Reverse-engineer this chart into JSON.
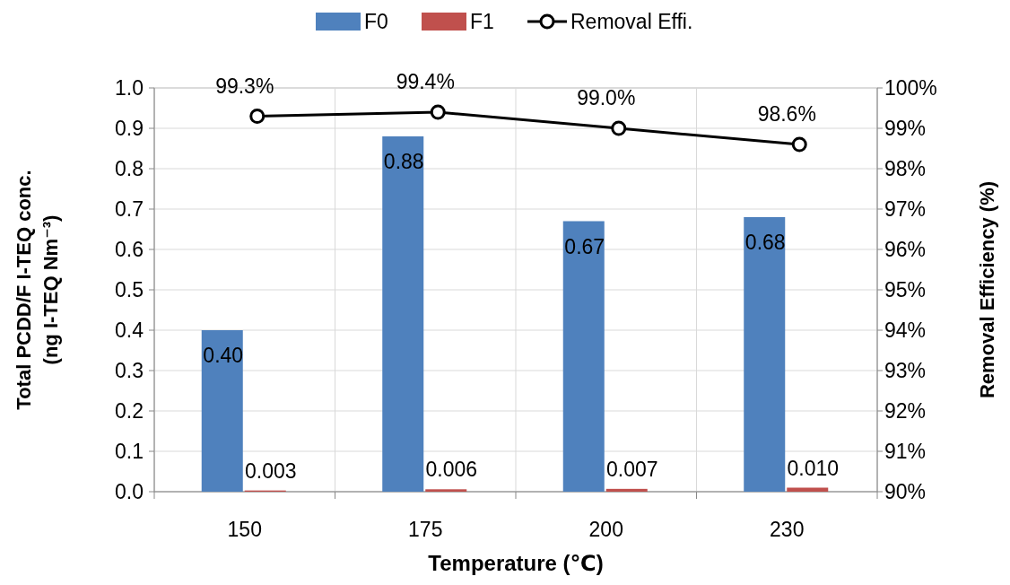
{
  "chart_data": {
    "type": "bar",
    "xlabel": "Temperature (℃)",
    "ylabel": "Total PCDD/F I-TEQ conc.\n(ng I-TEQ Nm⁻³)",
    "y2label": "Removal Efficiency (%)",
    "categories": [
      "150",
      "175",
      "200",
      "230"
    ],
    "series": [
      {
        "name": "F0",
        "color": "#4f81bd",
        "values": [
          0.4,
          0.88,
          0.67,
          0.68
        ],
        "value_labels": [
          "0.40",
          "0.88",
          "0.67",
          "0.68"
        ]
      },
      {
        "name": "F1",
        "color": "#c0504d",
        "values": [
          0.003,
          0.006,
          0.007,
          0.01
        ],
        "value_labels": [
          "0.003",
          "0.006",
          "0.007",
          "0.010"
        ]
      },
      {
        "name": "Removal Effi.",
        "type": "line",
        "axis": "y2",
        "color": "#000000",
        "values": [
          99.3,
          99.4,
          99.0,
          98.6
        ],
        "value_labels": [
          "99.3%",
          "99.4%",
          "99.0%",
          "98.6%"
        ]
      }
    ],
    "ylim": [
      0,
      1
    ],
    "yticks": [
      {
        "value": 0,
        "label": "0.0"
      },
      0.1,
      0.2,
      0.3,
      0.4,
      0.5,
      0.6,
      0.7,
      0.8,
      0.9,
      {
        "value": 1,
        "label": "1.0"
      }
    ],
    "y2lim": [
      90,
      100
    ],
    "y2ticks": [
      {
        "value": 90,
        "label": "90%"
      },
      {
        "value": 91,
        "label": "91%"
      },
      {
        "value": 92,
        "label": "92%"
      },
      {
        "value": 93,
        "label": "93%"
      },
      {
        "value": 94,
        "label": "94%"
      },
      {
        "value": 95,
        "label": "95%"
      },
      {
        "value": 96,
        "label": "96%"
      },
      {
        "value": 97,
        "label": "97%"
      },
      {
        "value": 98,
        "label": "98%"
      },
      {
        "value": 99,
        "label": "99%"
      },
      {
        "value": 100,
        "label": "100%"
      }
    ],
    "grid": true,
    "legend": "top",
    "marker": "circle",
    "line_style": "solid"
  }
}
